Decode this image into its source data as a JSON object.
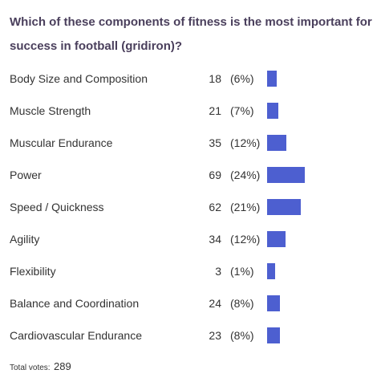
{
  "poll": {
    "question": "Which of these components of fitness is the most important for success in football (gridiron)?",
    "total_label": "Total votes:",
    "total_value": "289",
    "bar_color": "#4d5fd0"
  },
  "chart_data": {
    "type": "bar",
    "orientation": "horizontal",
    "title": "Which of these components of fitness is the most important for success in football (gridiron)?",
    "categories": [
      "Body Size and Composition",
      "Muscle Strength",
      "Muscular Endurance",
      "Power",
      "Speed / Quickness",
      "Agility",
      "Flexibility",
      "Balance and Coordination",
      "Cardiovascular Endurance"
    ],
    "values": [
      18,
      21,
      35,
      69,
      62,
      34,
      3,
      24,
      23
    ],
    "percent_labels": [
      "(6%)",
      "(7%)",
      "(12%)",
      "(24%)",
      "(21%)",
      "(12%)",
      "(1%)",
      "(8%)",
      "(8%)"
    ],
    "total": 289
  }
}
